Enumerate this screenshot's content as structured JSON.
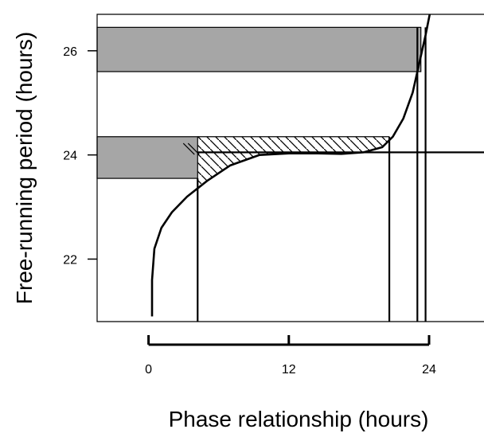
{
  "chart_data": {
    "type": "line",
    "title": "",
    "xlabel": "Phase relationship (hours)",
    "ylabel": "Free-running period (hours)",
    "x_ticks": [
      0,
      12,
      24
    ],
    "y_ticks": [
      22,
      24,
      26
    ],
    "xlim": [
      -4.4,
      28.7
    ],
    "ylim": [
      20.8,
      26.7
    ],
    "curve": {
      "x": [
        0.3,
        0.3,
        0.5,
        1.1,
        2.0,
        3.3,
        5.0,
        7.0,
        9.5,
        12.0,
        14.5,
        16.5,
        18.4,
        20.0,
        20.9,
        21.8,
        22.6,
        23.2,
        23.7,
        24.1,
        24.4
      ],
      "y": [
        20.9,
        21.6,
        22.2,
        22.6,
        22.9,
        23.2,
        23.5,
        23.8,
        24.0,
        24.03,
        24.03,
        24.02,
        24.05,
        24.15,
        24.35,
        24.7,
        25.2,
        25.8,
        26.3,
        26.75,
        26.9
      ]
    },
    "horizontal_line_y": 24.05,
    "vertical_lines_x": [
      4.2,
      20.6,
      23.0,
      23.7
    ],
    "shaded_bars": [
      {
        "x0": -4.4,
        "x1": 23.3,
        "y0": 25.6,
        "y1": 26.45,
        "fill": "#a6a6a6"
      },
      {
        "x0": -4.4,
        "x1": 4.2,
        "y0": 23.55,
        "y1": 24.35,
        "fill": "#a6a6a6"
      }
    ],
    "hatched_region": {
      "x0": 4.2,
      "x1": 20.6,
      "y_top": 24.35
    },
    "scale_bar": {
      "from": 0,
      "to": 24
    }
  }
}
